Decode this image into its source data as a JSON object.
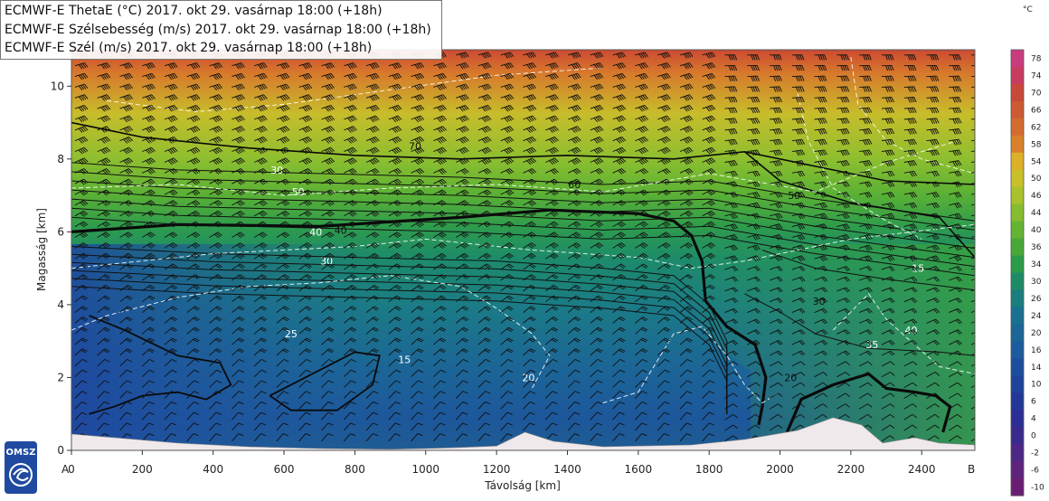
{
  "legend": {
    "line1": "ECMWF-E ThetaE (°C) 2017. okt 29. vasárnap 18:00 (+18h)",
    "line2": "ECMWF-E Szélsebesség (m/s) 2017. okt 29. vasárnap 18:00 (+18h)",
    "line3": "ECMWF-E Szél (m/s) 2017. okt 29. vasárnap 18:00 (+18h)"
  },
  "logo_text": "OMSZ",
  "colorbar": {
    "unit": "°C",
    "ticks": [
      78,
      74,
      70,
      66,
      62,
      58,
      54,
      50,
      46,
      44,
      40,
      36,
      34,
      30,
      26,
      24,
      20,
      16,
      14,
      10,
      6,
      4,
      0,
      -2,
      -6,
      -10
    ],
    "colors": [
      "#c83c7d",
      "#c83c62",
      "#c8483a",
      "#cc5a33",
      "#d36c2e",
      "#d8812a",
      "#ddb02a",
      "#c7c02b",
      "#a8c12d",
      "#86bc2f",
      "#64b333",
      "#47a836",
      "#2c9b48",
      "#1f8b66",
      "#1a7e7e",
      "#1a7090",
      "#1b6597",
      "#1c5b9d",
      "#1d4e9e",
      "#1f439b",
      "#233797",
      "#2b2e92",
      "#3a2a8c",
      "#4d2786",
      "#5e237d",
      "#6a1e73"
    ]
  },
  "chart_data": {
    "type": "heatmap",
    "title": "",
    "xlabel": "Távolság [km]",
    "ylabel": "Magasság [km]",
    "x_ticks": [
      0,
      200,
      400,
      600,
      800,
      1000,
      1200,
      1400,
      1600,
      1800,
      2000,
      2200,
      2400
    ],
    "y_ticks": [
      0,
      2,
      4,
      6,
      8,
      10
    ],
    "xlim": [
      0,
      2550
    ],
    "ylim": [
      0,
      11
    ],
    "x_end_labels": {
      "start": "A",
      "end": "B"
    },
    "thetae_contours": [
      {
        "value": 70,
        "label_at_km": 970,
        "label_height_km": 8.35
      },
      {
        "value": 60,
        "label_at_km": 1420,
        "label_height_km": 7.3
      },
      {
        "value": 50,
        "label_at_km": 2040,
        "label_height_km": 7.0
      },
      {
        "value": 40,
        "label_at_km": 760,
        "label_height_km": 6.05
      },
      {
        "value": 30,
        "label_at_km": 2110,
        "label_height_km": 4.1
      },
      {
        "value": 20,
        "label_at_km": 2030,
        "label_height_km": 2.0
      }
    ],
    "wind_speed_contours": [
      {
        "value": 30,
        "label_at_km": 580,
        "label_height_km": 7.7
      },
      {
        "value": 50,
        "label_at_km": 640,
        "label_height_km": 7.1
      },
      {
        "value": 40,
        "label_at_km": 690,
        "label_height_km": 6.0
      },
      {
        "value": 30,
        "label_at_km": 720,
        "label_height_km": 5.2
      },
      {
        "value": 25,
        "label_at_km": 620,
        "label_height_km": 3.2
      },
      {
        "value": 15,
        "label_at_km": 940,
        "label_height_km": 2.5
      },
      {
        "value": 20,
        "label_at_km": 1290,
        "label_height_km": 2.0
      },
      {
        "value": 15,
        "label_at_km": 2390,
        "label_height_km": 5.0
      },
      {
        "value": 35,
        "label_at_km": 2260,
        "label_height_km": 2.9
      },
      {
        "value": 40,
        "label_at_km": 2370,
        "label_height_km": 3.3
      }
    ]
  }
}
